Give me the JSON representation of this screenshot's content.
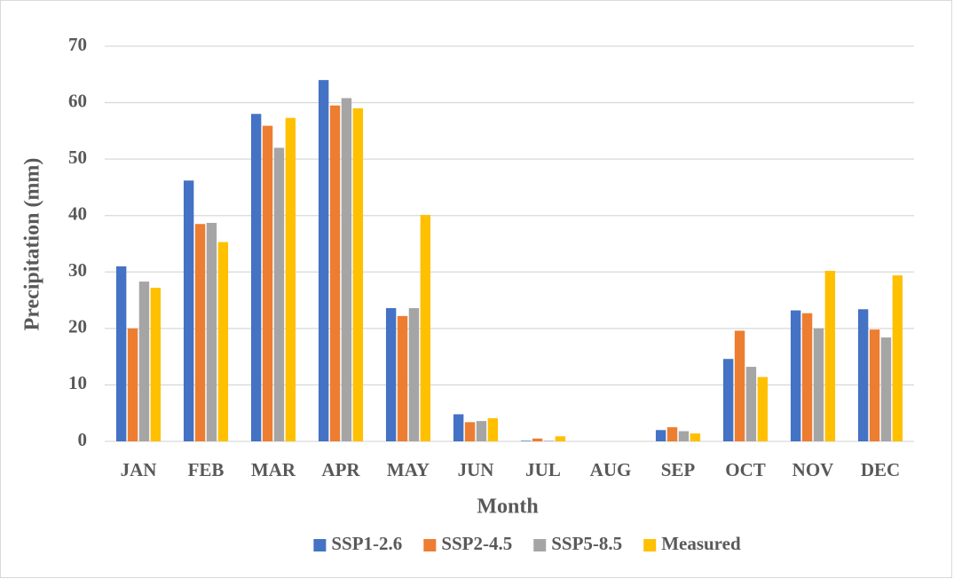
{
  "chart_data": {
    "type": "bar",
    "x_label": "Month",
    "y_label": "Precipitation (mm)",
    "categories": [
      "JAN",
      "FEB",
      "MAR",
      "APR",
      "MAY",
      "JUN",
      "JUL",
      "AUG",
      "SEP",
      "OCT",
      "NOV",
      "DEC"
    ],
    "series": [
      {
        "name": "SSP1-2.6",
        "color": "#4472c4",
        "values": [
          31,
          46.2,
          58,
          64,
          23.6,
          4.8,
          0.1,
          0,
          2.0,
          14.6,
          23.2,
          23.4
        ]
      },
      {
        "name": "SSP2-4.5",
        "color": "#ed7d31",
        "values": [
          20,
          38.5,
          55.9,
          59.5,
          22.2,
          3.4,
          0.5,
          0,
          2.5,
          19.6,
          22.7,
          19.8
        ]
      },
      {
        "name": "SSP5-8.5",
        "color": "#a5a5a5",
        "values": [
          28.3,
          38.7,
          52,
          60.8,
          23.6,
          3.6,
          0.1,
          0,
          1.8,
          13.2,
          20,
          18.4
        ]
      },
      {
        "name": "Measured",
        "color": "#ffc000",
        "values": [
          27.2,
          35.3,
          57.3,
          59,
          40.1,
          4.1,
          0.9,
          0,
          1.4,
          11.4,
          30.2,
          29.4
        ]
      }
    ],
    "ylim": [
      0,
      70
    ],
    "yticks": [
      0,
      10,
      20,
      30,
      40,
      50,
      60,
      70
    ],
    "grid": true,
    "legend": "bottom"
  }
}
